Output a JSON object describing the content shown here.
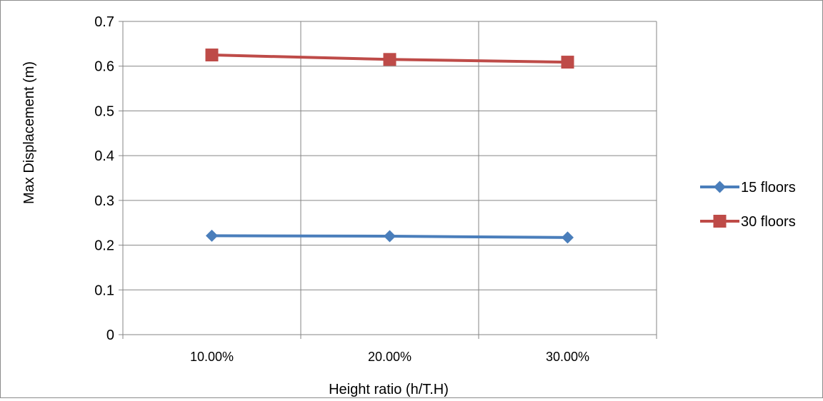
{
  "chart_data": {
    "type": "line",
    "categories": [
      "10.00%",
      "20.00%",
      "30.00%"
    ],
    "series": [
      {
        "name": "15 floors",
        "values": [
          0.221,
          0.22,
          0.217
        ],
        "color": "#4a7ebb",
        "marker": "diamond"
      },
      {
        "name": "30 floors",
        "values": [
          0.625,
          0.615,
          0.609
        ],
        "color": "#be4b48",
        "marker": "square"
      }
    ],
    "title": "",
    "xlabel": "Height ratio (h/T.H)",
    "ylabel": "Max Displacement (m)",
    "ylim": [
      0,
      0.7
    ],
    "yticks": [
      "0",
      "0.1",
      "0.2",
      "0.3",
      "0.4",
      "0.5",
      "0.6",
      "0.7"
    ],
    "grid": true,
    "legend": "right",
    "grid_color": "#868686",
    "axis_color": "#868686"
  }
}
